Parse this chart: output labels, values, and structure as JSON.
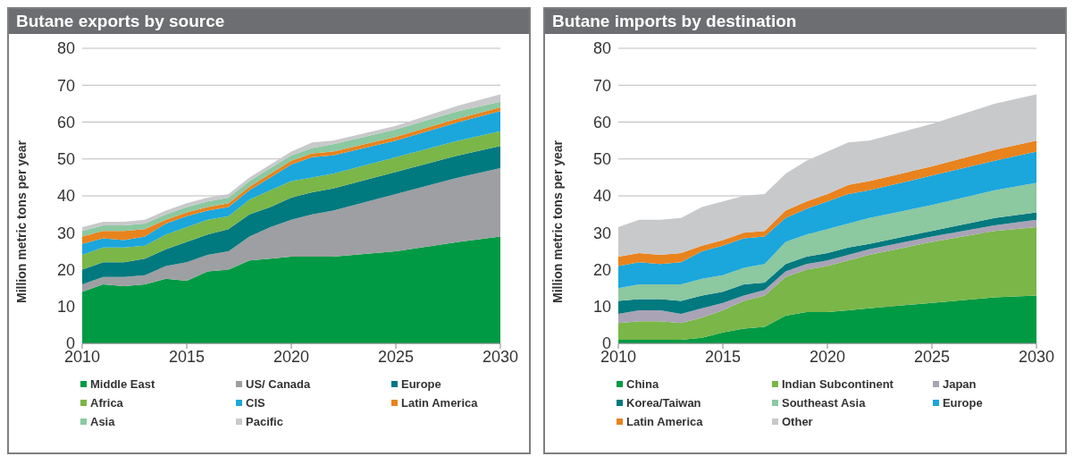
{
  "chart_data": [
    {
      "type": "area",
      "stacked": true,
      "title": "Butane exports by source",
      "ylabel": "Million metric tons per year",
      "x": [
        2010,
        2011,
        2012,
        2013,
        2014,
        2015,
        2016,
        2017,
        2018,
        2019,
        2020,
        2021,
        2022,
        2025,
        2028,
        2030
      ],
      "xlim": [
        2010,
        2030
      ],
      "xticks": [
        2010,
        2015,
        2020,
        2025,
        2030
      ],
      "ylim": [
        0,
        80
      ],
      "yticks": [
        0,
        10,
        20,
        30,
        40,
        50,
        60,
        70,
        80
      ],
      "grid": "y",
      "legend": "bottom",
      "series": [
        {
          "name": "Middle East",
          "color": "#009a44",
          "values": [
            14,
            16,
            15.5,
            16,
            17.5,
            17,
            19.5,
            20,
            22.5,
            23,
            23.5,
            23.5,
            23.5,
            25,
            27.5,
            29
          ]
        },
        {
          "name": "US/ Canada",
          "color": "#9d9fa2",
          "values": [
            2,
            2,
            2.5,
            2.5,
            3.5,
            5,
            4.5,
            5,
            6.5,
            8.5,
            10,
            11.5,
            12.5,
            15.5,
            17.5,
            18.5
          ]
        },
        {
          "name": "Europe",
          "color": "#00797f",
          "values": [
            4,
            4,
            4,
            4.5,
            4.5,
            5.5,
            5.5,
            6,
            6,
            5.5,
            6,
            6,
            6,
            6,
            6,
            6
          ]
        },
        {
          "name": "Africa",
          "color": "#7ab648",
          "values": [
            4,
            4,
            4,
            3.5,
            4,
            4,
            4,
            3.5,
            4,
            4.5,
            4.5,
            4,
            4,
            4,
            4,
            4
          ]
        },
        {
          "name": "CIS",
          "color": "#1ba6dc",
          "values": [
            3,
            2.5,
            2,
            2.5,
            3,
            3,
            2.5,
            2.5,
            2.5,
            3.5,
            4.5,
            5.5,
            5,
            4.5,
            5,
            5.5
          ]
        },
        {
          "name": "Latin America",
          "color": "#e8831e",
          "values": [
            2,
            2,
            2.5,
            2,
            1,
            1,
            1,
            1,
            1,
            1,
            1,
            1,
            1,
            1,
            1,
            1
          ]
        },
        {
          "name": "Asia",
          "color": "#8cc8a0",
          "values": [
            1.5,
            1.5,
            1.5,
            1.5,
            1.5,
            1.5,
            1.5,
            1.5,
            1.5,
            1.5,
            1.5,
            1.5,
            2,
            2,
            2,
            1.5
          ]
        },
        {
          "name": "Pacific",
          "color": "#c8c9cb",
          "values": [
            1,
            1,
            1,
            1,
            1,
            1,
            1,
            1,
            1,
            1,
            1,
            1.5,
            1,
            1,
            1.5,
            2
          ]
        }
      ]
    },
    {
      "type": "area",
      "stacked": true,
      "title": "Butane imports by destination",
      "ylabel": "Million metric tons per year",
      "x": [
        2010,
        2011,
        2012,
        2013,
        2014,
        2015,
        2016,
        2017,
        2018,
        2019,
        2020,
        2021,
        2022,
        2025,
        2028,
        2030
      ],
      "xlim": [
        2010,
        2030
      ],
      "xticks": [
        2010,
        2015,
        2020,
        2025,
        2030
      ],
      "ylim": [
        0,
        80
      ],
      "yticks": [
        0,
        10,
        20,
        30,
        40,
        50,
        60,
        70,
        80
      ],
      "grid": "y",
      "legend": "bottom",
      "series": [
        {
          "name": "China",
          "color": "#009a44",
          "values": [
            1,
            1,
            1,
            1,
            1.5,
            3,
            4,
            4.5,
            7.5,
            8.5,
            8.5,
            9,
            9.5,
            11,
            12.5,
            13
          ]
        },
        {
          "name": "Indian Subcontinent",
          "color": "#7ab648",
          "values": [
            4.5,
            5,
            5,
            4.5,
            5.5,
            6,
            7.5,
            8.5,
            10.5,
            11.5,
            12.5,
            13.5,
            14.5,
            16.5,
            18,
            18.5
          ]
        },
        {
          "name": "Japan",
          "color": "#a9a3b5",
          "values": [
            2.5,
            3,
            3,
            2.5,
            2.5,
            2,
            1.5,
            1.5,
            1.5,
            1.5,
            1.5,
            1.5,
            1.5,
            1.5,
            1.5,
            2
          ]
        },
        {
          "name": "Korea/Taiwan",
          "color": "#00797f",
          "values": [
            3.5,
            3,
            3,
            3.5,
            3.5,
            3,
            3,
            2,
            2,
            2,
            2,
            2,
            1.5,
            1.5,
            2,
            2
          ]
        },
        {
          "name": "Southeast Asia",
          "color": "#8cc8a0",
          "values": [
            3.5,
            4,
            4,
            4.5,
            4.5,
            4.5,
            4.5,
            5,
            6,
            6,
            6.5,
            6.5,
            7,
            7,
            7.5,
            8
          ]
        },
        {
          "name": "Europe",
          "color": "#1ba6dc",
          "values": [
            6,
            6,
            5.5,
            6,
            7.5,
            8,
            8,
            7.5,
            6.5,
            7,
            7.5,
            8,
            7.5,
            8,
            8,
            8.5
          ]
        },
        {
          "name": "Latin America",
          "color": "#e8831e",
          "values": [
            2.5,
            2.5,
            2.5,
            2.5,
            1.5,
            1.5,
            1.5,
            1.5,
            2,
            2,
            2,
            2.5,
            2.5,
            2.5,
            3,
            3
          ]
        },
        {
          "name": "Other",
          "color": "#c8c9cb",
          "values": [
            8,
            9,
            9.5,
            9.5,
            10.5,
            10.5,
            10,
            10,
            10,
            11,
            11.5,
            11.5,
            11,
            11.5,
            12.5,
            12.5
          ]
        }
      ]
    }
  ]
}
